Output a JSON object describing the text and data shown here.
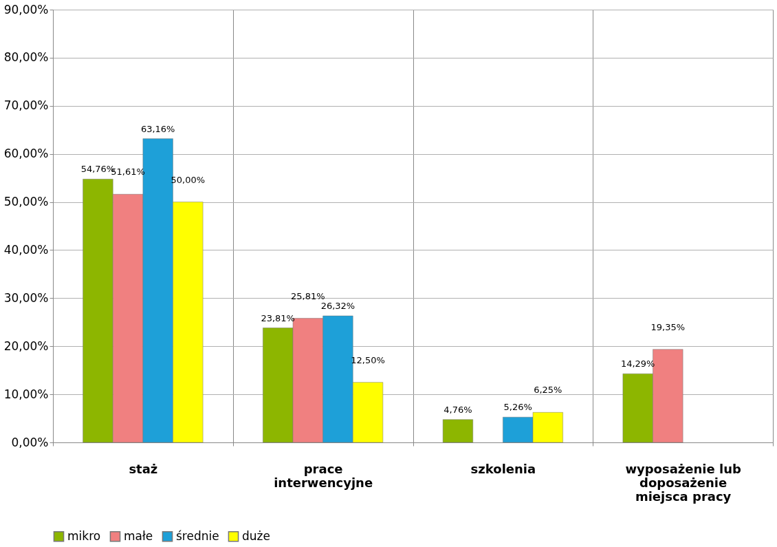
{
  "chart_data": {
    "type": "bar",
    "categories": [
      "staż",
      "prace interwencyjne",
      "szkolenia",
      "wyposażenie lub doposażenie miejsca pracy"
    ],
    "series": [
      {
        "name": "mikro",
        "color": "#8db600",
        "values": [
          54.76,
          23.81,
          4.76,
          14.29
        ],
        "value_labels": [
          "54,76%",
          "23,81%",
          "4,76%",
          "14,29%"
        ]
      },
      {
        "name": "małe",
        "color": "#f08080",
        "values": [
          51.61,
          25.81,
          null,
          19.35
        ],
        "value_labels": [
          "51,61%",
          "25,81%",
          null,
          "19,35%"
        ]
      },
      {
        "name": "średnie",
        "color": "#1ea0d8",
        "values": [
          63.16,
          26.32,
          5.26,
          null
        ],
        "value_labels": [
          "63,16%",
          "26,32%",
          "5,26%",
          null
        ]
      },
      {
        "name": "duże",
        "color": "#ffff00",
        "values": [
          50.0,
          12.5,
          6.25,
          null
        ],
        "value_labels": [
          "50,00%",
          "12,50%",
          "6,25%",
          null
        ]
      }
    ],
    "ylim": [
      0,
      90
    ],
    "yticks": [
      {
        "value": 0,
        "label": "0,00%"
      },
      {
        "value": 10,
        "label": "10,00%"
      },
      {
        "value": 20,
        "label": "20,00%"
      },
      {
        "value": 30,
        "label": "30,00%"
      },
      {
        "value": 40,
        "label": "40,00%"
      },
      {
        "value": 50,
        "label": "50,00%"
      },
      {
        "value": 60,
        "label": "60,00%"
      },
      {
        "value": 70,
        "label": "70,00%"
      },
      {
        "value": 80,
        "label": "80,00%"
      },
      {
        "value": 90,
        "label": "90,00%"
      }
    ],
    "grid": true,
    "legend": "bottom"
  }
}
